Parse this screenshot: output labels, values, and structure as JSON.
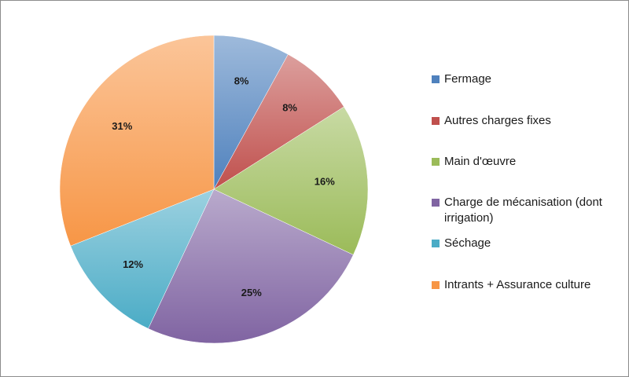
{
  "chart_data": {
    "type": "pie",
    "title": "",
    "labels": [
      "Fermage",
      "Autres charges fixes",
      "Main d'œuvre",
      "Charge de mécanisation (dont irrigation)",
      "Séchage",
      "Intrants + Assurance culture"
    ],
    "values": [
      8,
      8,
      16,
      25,
      12,
      31
    ],
    "value_labels": [
      "8%",
      "8%",
      "16%",
      "25%",
      "12%",
      "31%"
    ],
    "colors": [
      "#4f81bd",
      "#c0504d",
      "#9bbb59",
      "#8064a2",
      "#4bacc6",
      "#f79646"
    ],
    "start_angle_deg": 0,
    "direction": "clockwise",
    "legend_position": "right"
  },
  "legend": {
    "items": [
      {
        "label": "Fermage",
        "color": "#4f81bd"
      },
      {
        "label": "Autres charges fixes",
        "color": "#c0504d"
      },
      {
        "label": "Main d'œuvre",
        "color": "#9bbb59"
      },
      {
        "label": "Charge de mécanisation (dont irrigation)",
        "color": "#8064a2"
      },
      {
        "label": "Séchage",
        "color": "#4bacc6"
      },
      {
        "label": "Intrants + Assurance culture",
        "color": "#f79646"
      }
    ]
  }
}
